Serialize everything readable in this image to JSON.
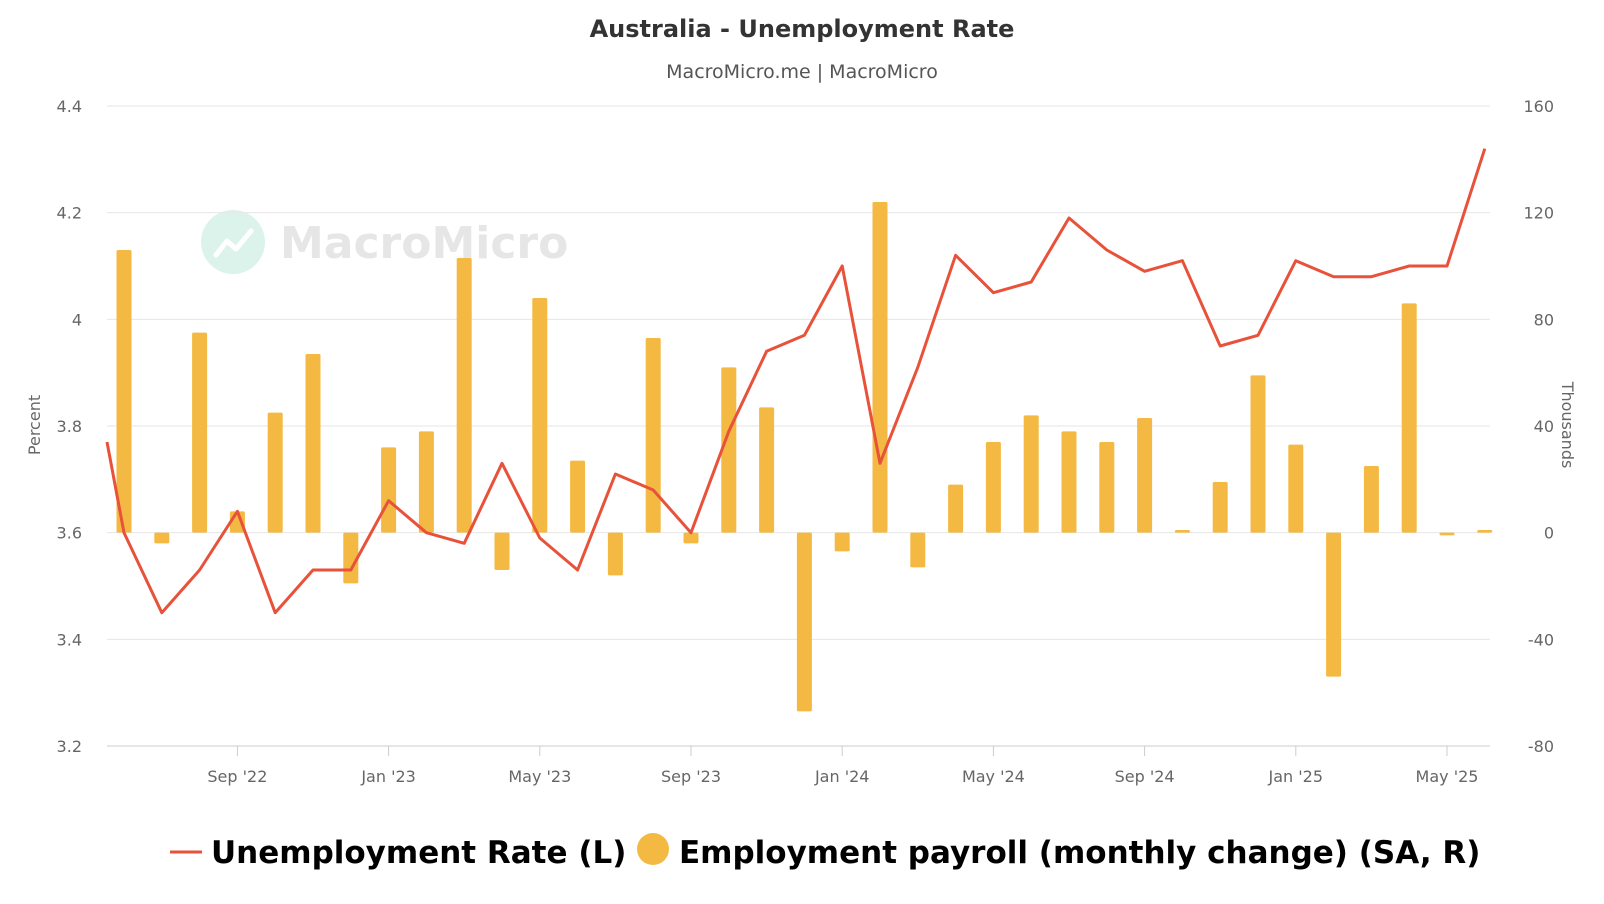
{
  "chart_data": {
    "type": "bar+line",
    "title": "Australia - Unemployment Rate",
    "subtitle": "MacroMicro.me | MacroMicro",
    "watermark": "MacroMicro",
    "y_left": {
      "label": "Percent",
      "ylim": [
        3.2,
        4.4
      ],
      "ticks": [
        "3.2",
        "3.4",
        "3.6",
        "3.8",
        "4",
        "4.2",
        "4.4"
      ]
    },
    "y_right": {
      "label": "Thousands",
      "ylim": [
        -80,
        160
      ],
      "ticks": [
        "-80",
        "-40",
        "0",
        "40",
        "80",
        "120",
        "160"
      ]
    },
    "x_ticks": [
      {
        "label": "Sep '22",
        "date": "2022-09"
      },
      {
        "label": "Jan '23",
        "date": "2023-01"
      },
      {
        "label": "May '23",
        "date": "2023-05"
      },
      {
        "label": "Sep '23",
        "date": "2023-09"
      },
      {
        "label": "Jan '24",
        "date": "2024-01"
      },
      {
        "label": "May '24",
        "date": "2024-05"
      },
      {
        "label": "Sep '24",
        "date": "2024-09"
      },
      {
        "label": "Jan '25",
        "date": "2025-01"
      },
      {
        "label": "May '25",
        "date": "2025-05"
      }
    ],
    "x": [
      "2022-06",
      "2022-07",
      "2022-08",
      "2022-09",
      "2022-10",
      "2022-11",
      "2022-12",
      "2023-01",
      "2023-02",
      "2023-03",
      "2023-04",
      "2023-05",
      "2023-06",
      "2023-07",
      "2023-08",
      "2023-09",
      "2023-10",
      "2023-11",
      "2023-12",
      "2024-01",
      "2024-02",
      "2024-03",
      "2024-04",
      "2024-05",
      "2024-06",
      "2024-07",
      "2024-08",
      "2024-09",
      "2024-10",
      "2024-11",
      "2024-12",
      "2025-01",
      "2025-02",
      "2025-03",
      "2025-04",
      "2025-05",
      "2025-06"
    ],
    "series": [
      {
        "name": "Unemployment Rate (L)",
        "type": "line",
        "axis": "left",
        "color": "#e8523a",
        "values": [
          3.6,
          3.45,
          3.53,
          3.64,
          3.45,
          3.53,
          3.53,
          3.66,
          3.6,
          3.58,
          3.73,
          3.59,
          3.53,
          3.71,
          3.68,
          3.6,
          3.79,
          3.94,
          3.97,
          4.1,
          3.73,
          3.91,
          4.12,
          4.05,
          4.07,
          4.19,
          4.13,
          4.09,
          4.11,
          3.95,
          3.97,
          4.11,
          4.08,
          4.08,
          4.1,
          4.1,
          4.32
        ]
      },
      {
        "name": "Employment payroll (monthly change) (SA, R)",
        "type": "bar",
        "axis": "right",
        "color": "#f4b942",
        "values": [
          106,
          -4,
          75,
          8,
          45,
          67,
          -19,
          32,
          38,
          103,
          -14,
          88,
          27,
          -16,
          73,
          -4,
          62,
          47,
          -67,
          -7,
          124,
          -13,
          18,
          34,
          44,
          38,
          34,
          43,
          1,
          19,
          59,
          33,
          -54,
          25,
          86,
          -1,
          1
        ]
      }
    ],
    "legend": {
      "placement": "bottom"
    },
    "grid": true
  }
}
